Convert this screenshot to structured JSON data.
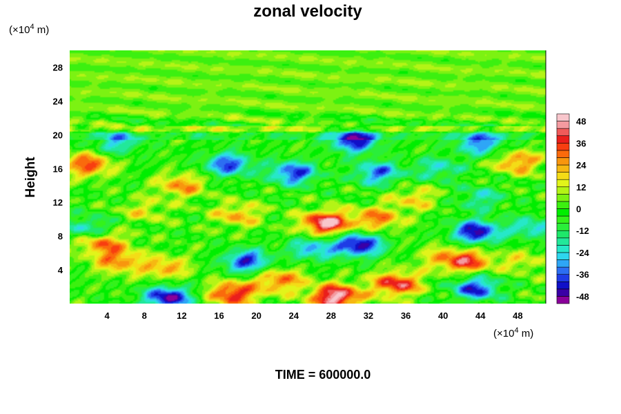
{
  "chart_data": {
    "type": "heatmap",
    "title": "zonal velocity",
    "ylabel": "Height",
    "x_unit_prefix": "(×10",
    "x_unit_exp": "4",
    "x_unit_suffix": " m)",
    "y_unit_prefix": "(×10",
    "y_unit_exp": "4",
    "y_unit_suffix": " m)",
    "xlim": [
      0,
      51
    ],
    "ylim": [
      0,
      30
    ],
    "x_ticks": [
      "4",
      "8",
      "12",
      "16",
      "20",
      "24",
      "28",
      "32",
      "36",
      "40",
      "44",
      "48"
    ],
    "y_ticks": [
      "4",
      "8",
      "12",
      "16",
      "20",
      "24",
      "28"
    ],
    "colorbar": {
      "range": [
        -52,
        52
      ],
      "ticks": [
        "48",
        "36",
        "24",
        "12",
        "0",
        "-12",
        "-24",
        "-36",
        "-48"
      ],
      "levels": [
        -52,
        -48,
        -44,
        -40,
        -36,
        -32,
        -28,
        -24,
        -20,
        -16,
        -12,
        -8,
        -4,
        0,
        4,
        8,
        12,
        16,
        20,
        24,
        28,
        32,
        36,
        40,
        44,
        48,
        52
      ]
    },
    "colors": [
      "#8a009a",
      "#3a00a6",
      "#1010c8",
      "#1e3ce6",
      "#2c6ef2",
      "#2ea6f6",
      "#2ed6ee",
      "#26e8c8",
      "#22e89a",
      "#1ee86a",
      "#2aee3a",
      "#34f21a",
      "#00ee00",
      "#3cf010",
      "#7cf212",
      "#b4f416",
      "#e2f41a",
      "#f4dc16",
      "#f6b812",
      "#f8960e",
      "#fa6a0c",
      "#f83e10",
      "#ea1e1c",
      "#f05a5a",
      "#f49aa0",
      "#f8c6cc"
    ],
    "features": [
      {
        "x": 3.5,
        "y": 7.2,
        "u": 30
      },
      {
        "x": 5.2,
        "y": 5.0,
        "u": 26
      },
      {
        "x": 10.2,
        "y": 4.2,
        "u": 24
      },
      {
        "x": 10.5,
        "y": 0.7,
        "u": -48
      },
      {
        "x": 17.5,
        "y": 1.2,
        "u": 40
      },
      {
        "x": 19.0,
        "y": 5.0,
        "u": -40
      },
      {
        "x": 22.5,
        "y": 2.8,
        "u": 30
      },
      {
        "x": 28.5,
        "y": 0.8,
        "u": 52
      },
      {
        "x": 31.0,
        "y": 7.0,
        "u": -48
      },
      {
        "x": 26.0,
        "y": 6.5,
        "u": -28
      },
      {
        "x": 35.0,
        "y": 2.3,
        "u": 40
      },
      {
        "x": 39.5,
        "y": 5.5,
        "u": 14
      },
      {
        "x": 42.5,
        "y": 5.0,
        "u": 36
      },
      {
        "x": 43.5,
        "y": 1.8,
        "u": -40
      },
      {
        "x": 43.5,
        "y": 8.5,
        "u": -46
      },
      {
        "x": 48.5,
        "y": 5.0,
        "u": 14
      },
      {
        "x": 27.5,
        "y": 9.5,
        "u": 50
      },
      {
        "x": 33.0,
        "y": 10.0,
        "u": 28
      },
      {
        "x": 18.0,
        "y": 10.5,
        "u": 22
      },
      {
        "x": 8.0,
        "y": 11.0,
        "u": 14
      },
      {
        "x": 2.0,
        "y": 9.0,
        "u": -24
      },
      {
        "x": 49.5,
        "y": 9.0,
        "u": -24
      },
      {
        "x": 24.0,
        "y": 15.5,
        "u": -40
      },
      {
        "x": 17.0,
        "y": 16.5,
        "u": -38
      },
      {
        "x": 33.0,
        "y": 15.5,
        "u": -34
      },
      {
        "x": 39.5,
        "y": 16.0,
        "u": -22
      },
      {
        "x": 12.0,
        "y": 14.0,
        "u": 26
      },
      {
        "x": 2.0,
        "y": 16.5,
        "u": 34
      },
      {
        "x": 48.0,
        "y": 16.8,
        "u": 28
      },
      {
        "x": 44.0,
        "y": 12.5,
        "u": -20
      },
      {
        "x": 30.5,
        "y": 19.3,
        "u": -44
      },
      {
        "x": 44.0,
        "y": 19.0,
        "u": -34
      },
      {
        "x": 5.0,
        "y": 19.0,
        "u": -26
      },
      {
        "x": 37.0,
        "y": 12.5,
        "u": 18
      }
    ],
    "time_label": "TIME = 600000.0"
  }
}
